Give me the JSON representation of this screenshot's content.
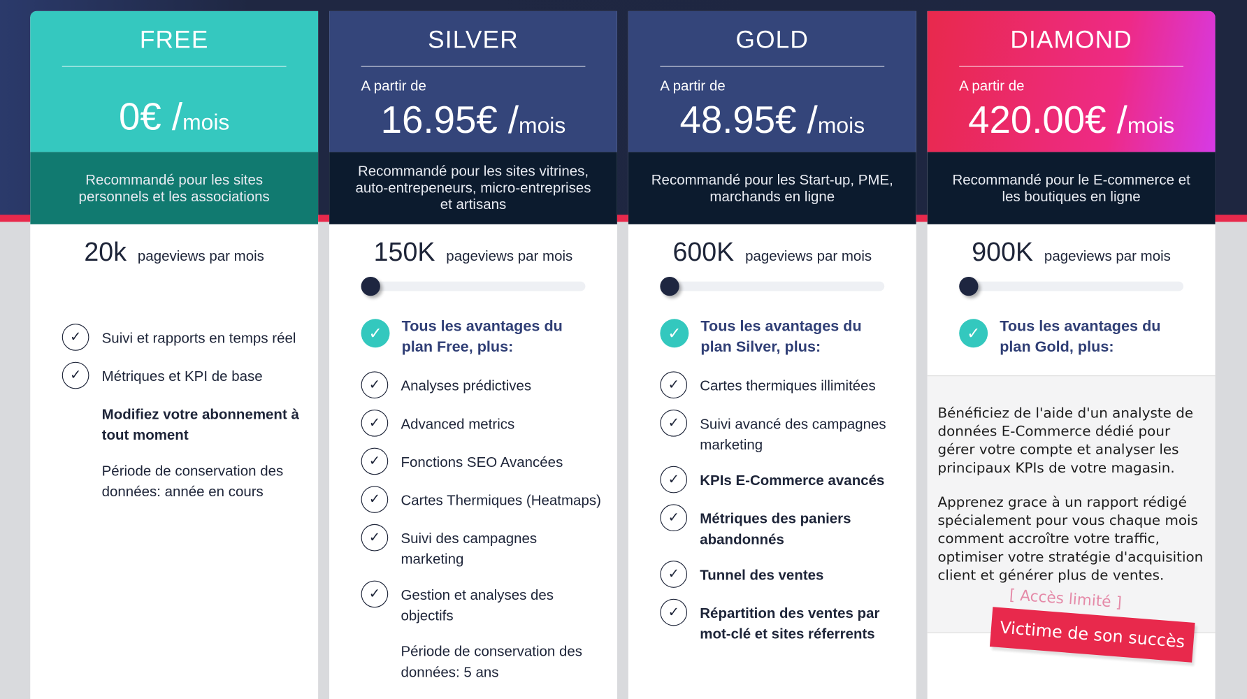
{
  "colors": {
    "free_header": "#35c8bf",
    "free_band": "#117a70",
    "silver_header": "#34457a",
    "gold_header": "#34457a",
    "dark_band": "#0c1b2e",
    "diamond_gradient": [
      "#e8294c",
      "#ee2a86",
      "#d63ae6"
    ],
    "accent_red": "#e8294c",
    "teal": "#33c8be"
  },
  "plans": [
    {
      "name": "FREE",
      "from": "",
      "price": "0€ /",
      "unit": "mois",
      "description": "Recommandé pour les sites personnels et les associations",
      "pageviews": "20k",
      "pageviews_label": "pageviews par mois",
      "has_slider": false,
      "features": [
        {
          "text": "Suivi et rapports en temps réel",
          "icon": "check-circle-icon"
        },
        {
          "text": "Métriques et KPI de base",
          "icon": "check-circle-icon"
        },
        {
          "text": "Modifiez votre abonnement à tout moment",
          "bold": true,
          "note": true
        },
        {
          "text": "Période de conservation des données: année en cours",
          "note": true
        }
      ]
    },
    {
      "name": "SILVER",
      "from": "A partir de",
      "price": "16.95€ /",
      "unit": "mois",
      "description": "Recommandé pour les sites vitrines, auto-entrepeneurs, micro-entreprises et artisans",
      "pageviews": "150K",
      "pageviews_label": "pageviews par mois",
      "has_slider": true,
      "slider_value": 0,
      "lead": "Tous les avantages du plan Free, plus:",
      "features": [
        {
          "text": "Analyses prédictives"
        },
        {
          "text": "Advanced metrics"
        },
        {
          "text": "Fonctions SEO Avancées"
        },
        {
          "text": "Cartes Thermiques (Heatmaps)"
        },
        {
          "text": "Suivi des campagnes marketing"
        },
        {
          "text": "Gestion et analyses des objectifs"
        },
        {
          "text": "Période de conservation des données: 5 ans",
          "note": true
        }
      ]
    },
    {
      "name": "GOLD",
      "from": "A partir de",
      "price": "48.95€ /",
      "unit": "mois",
      "description": "Recommandé pour les Start-up, PME, marchands en ligne",
      "pageviews": "600K",
      "pageviews_label": "pageviews par mois",
      "has_slider": true,
      "slider_value": 0,
      "lead": "Tous les avantages du plan Silver, plus:",
      "features": [
        {
          "text": "Cartes thermiques illimitées"
        },
        {
          "text": "Suivi avancé des campagnes marketing"
        },
        {
          "text": "KPIs E-Commerce avancés",
          "bold": true
        },
        {
          "text": "Métriques des paniers abandonnés",
          "bold": true
        },
        {
          "text": "Tunnel des ventes",
          "bold": true
        },
        {
          "text": "Répartition des ventes par mot-clé et sites réferrents",
          "bold": true
        }
      ]
    },
    {
      "name": "DIAMOND",
      "from": "A partir de",
      "price": "420.00€ /",
      "unit": "mois",
      "description": "Recommandé pour le E-commerce et les boutiques en ligne",
      "pageviews": "900K",
      "pageviews_label": "pageviews par mois",
      "has_slider": true,
      "slider_value": 0,
      "lead": "Tous les avantages du plan Gold, plus:",
      "paragraphs": [
        "Bénéficiez de l'aide d'un analyste de données E-Commerce dédié pour gérer votre compte et analyser les principaux KPIs de votre magasin.",
        "Apprenez grace à un rapport rédigé spécialement pour vous chaque mois comment accroître votre traffic, optimiser votre stratégie d'acquisition client et générer plus de ventes."
      ],
      "limited_access": "[ Accès limité ]",
      "ribbon": "Victime de son succès"
    }
  ]
}
